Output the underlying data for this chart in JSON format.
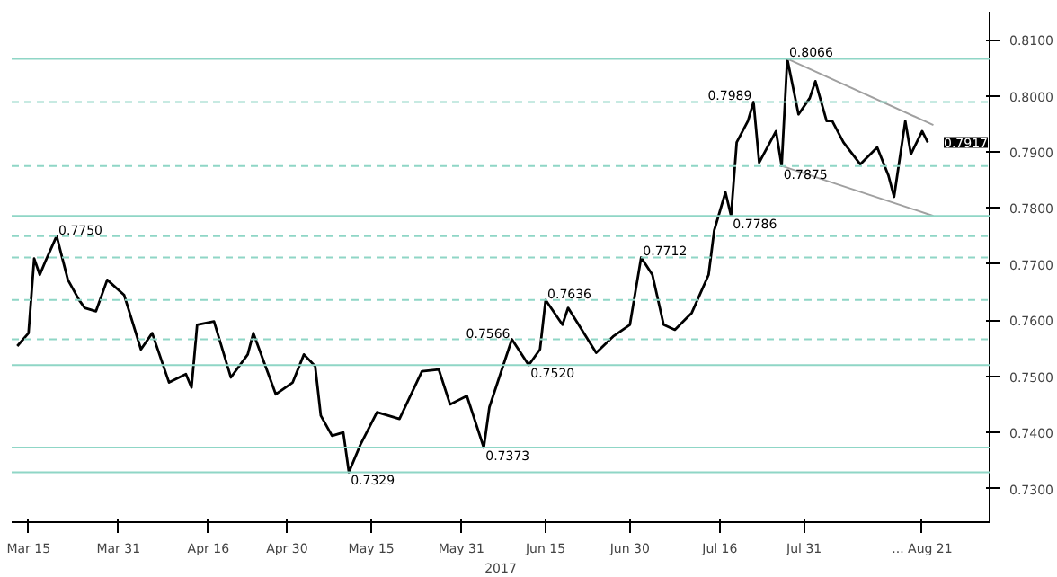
{
  "chart_data": {
    "type": "line",
    "xlabel": "2017",
    "series": [
      {
        "color": "#000000",
        "x": [
          "2017-03-13",
          "2017-03-15",
          "2017-03-16",
          "2017-03-17",
          "2017-03-18",
          "2017-03-20",
          "2017-03-22",
          "2017-03-24",
          "2017-03-25",
          "2017-03-27",
          "2017-03-29",
          "2017-04-01",
          "2017-04-04",
          "2017-04-06",
          "2017-04-09",
          "2017-04-12",
          "2017-04-13",
          "2017-04-14",
          "2017-04-17",
          "2017-04-20",
          "2017-04-23",
          "2017-04-24",
          "2017-04-28",
          "2017-05-01",
          "2017-05-03",
          "2017-05-05",
          "2017-05-06",
          "2017-05-08",
          "2017-05-10",
          "2017-05-11",
          "2017-05-13",
          "2017-05-16",
          "2017-05-20",
          "2017-05-24",
          "2017-05-27",
          "2017-05-29",
          "2017-06-01",
          "2017-06-04",
          "2017-06-05",
          "2017-06-09",
          "2017-06-12",
          "2017-06-14",
          "2017-06-15",
          "2017-06-18",
          "2017-06-19",
          "2017-06-24",
          "2017-06-27",
          "2017-06-30",
          "2017-07-02",
          "2017-07-04",
          "2017-07-06",
          "2017-07-08",
          "2017-07-11",
          "2017-07-14",
          "2017-07-15",
          "2017-07-17",
          "2017-07-18",
          "2017-07-19",
          "2017-07-21",
          "2017-07-22",
          "2017-07-23",
          "2017-07-26",
          "2017-07-27",
          "2017-07-28",
          "2017-07-30",
          "2017-08-01",
          "2017-08-02",
          "2017-08-04",
          "2017-08-05",
          "2017-08-07",
          "2017-08-10",
          "2017-08-13",
          "2017-08-15",
          "2017-08-16",
          "2017-08-18",
          "2017-08-19",
          "2017-08-21",
          "2017-08-22"
        ],
        "values": [
          0.7554,
          0.7577,
          0.771,
          0.7681,
          0.7705,
          0.775,
          0.7672,
          0.7636,
          0.7622,
          0.7616,
          0.7672,
          0.7645,
          0.7548,
          0.7577,
          0.7489,
          0.7504,
          0.748,
          0.7592,
          0.7598,
          0.7498,
          0.7539,
          0.7577,
          0.7468,
          0.7489,
          0.7539,
          0.7518,
          0.743,
          0.7394,
          0.74,
          0.7329,
          0.7377,
          0.7436,
          0.7424,
          0.7509,
          0.7512,
          0.745,
          0.7465,
          0.7373,
          0.7445,
          0.7566,
          0.752,
          0.7548,
          0.7636,
          0.7592,
          0.7622,
          0.7542,
          0.7571,
          0.7592,
          0.7712,
          0.7681,
          0.7592,
          0.7583,
          0.7613,
          0.7681,
          0.776,
          0.7828,
          0.7786,
          0.7917,
          0.7955,
          0.7989,
          0.7881,
          0.7937,
          0.7875,
          0.8066,
          0.7967,
          0.7996,
          0.8026,
          0.7955,
          0.7955,
          0.7917,
          0.7878,
          0.7908,
          0.7858,
          0.782,
          0.7955,
          0.7896,
          0.7937,
          0.7917
        ]
      },
      {
        "color": "#a0a0a0",
        "x": [
          "2017-07-28",
          "2017-08-23"
        ],
        "values": [
          0.8066,
          0.7948
        ]
      },
      {
        "color": "#a0a0a0",
        "x": [
          "2017-07-27",
          "2017-08-23"
        ],
        "values": [
          0.7875,
          0.7786
        ]
      }
    ],
    "xlim": [
      "2017-03-12",
      "2017-09-02"
    ],
    "ylim": [
      0.724,
      0.815
    ],
    "xticks": [
      {
        "value": "2017-03-15",
        "label": "Mar 15"
      },
      {
        "value": "2017-03-31",
        "label": "Mar 31"
      },
      {
        "value": "2017-04-16",
        "label": "Apr 16"
      },
      {
        "value": "2017-04-30",
        "label": "Apr 30"
      },
      {
        "value": "2017-05-15",
        "label": "May 15"
      },
      {
        "value": "2017-05-31",
        "label": "May 31"
      },
      {
        "value": "2017-06-15",
        "label": "Jun 15"
      },
      {
        "value": "2017-06-30",
        "label": "Jun 30"
      },
      {
        "value": "2017-07-16",
        "label": "Jul 16"
      },
      {
        "value": "2017-07-31",
        "label": "Jul 31"
      },
      {
        "value": "2017-08-21",
        "label": "... Aug 21"
      }
    ],
    "yticks": [
      {
        "value": 0.73,
        "label": "0.7300"
      },
      {
        "value": 0.74,
        "label": "0.7400"
      },
      {
        "value": 0.75,
        "label": "0.7500"
      },
      {
        "value": 0.76,
        "label": "0.7600"
      },
      {
        "value": 0.77,
        "label": "0.7700"
      },
      {
        "value": 0.78,
        "label": "0.7800"
      },
      {
        "value": 0.79,
        "label": "0.7900"
      },
      {
        "value": 0.8,
        "label": "0.8000"
      },
      {
        "value": 0.81,
        "label": "0.8100"
      }
    ],
    "ref_lines": [
      {
        "axis": "y",
        "value": 0.8066,
        "color": "#8fd6c6",
        "line_style": "solid"
      },
      {
        "axis": "y",
        "value": 0.7989,
        "color": "#8fd6c6",
        "line_style": "dashed"
      },
      {
        "axis": "y",
        "value": 0.7875,
        "color": "#8fd6c6",
        "line_style": "dashed"
      },
      {
        "axis": "y",
        "value": 0.7786,
        "color": "#8fd6c6",
        "line_style": "solid"
      },
      {
        "axis": "y",
        "value": 0.775,
        "color": "#8fd6c6",
        "line_style": "dashed"
      },
      {
        "axis": "y",
        "value": 0.7712,
        "color": "#8fd6c6",
        "line_style": "dashed"
      },
      {
        "axis": "y",
        "value": 0.7636,
        "color": "#8fd6c6",
        "line_style": "dashed"
      },
      {
        "axis": "y",
        "value": 0.7566,
        "color": "#8fd6c6",
        "line_style": "dashed"
      },
      {
        "axis": "y",
        "value": 0.752,
        "color": "#8fd6c6",
        "line_style": "solid"
      },
      {
        "axis": "y",
        "value": 0.7373,
        "color": "#8fd6c6",
        "line_style": "solid"
      },
      {
        "axis": "y",
        "value": 0.7329,
        "color": "#8fd6c6",
        "line_style": "solid"
      }
    ],
    "annotations": [
      {
        "text": "0.7750",
        "x": "2017-03-20",
        "y": 0.775
      },
      {
        "text": "0.7329",
        "x": "2017-05-11",
        "y": 0.7329
      },
      {
        "text": "0.7373",
        "x": "2017-06-04",
        "y": 0.7373
      },
      {
        "text": "0.7566",
        "x": "2017-06-09",
        "y": 0.7566
      },
      {
        "text": "0.7520",
        "x": "2017-06-12",
        "y": 0.752
      },
      {
        "text": "0.7636",
        "x": "2017-06-15",
        "y": 0.7636
      },
      {
        "text": "0.7712",
        "x": "2017-07-02",
        "y": 0.7712
      },
      {
        "text": "0.7786",
        "x": "2017-07-18",
        "y": 0.7786
      },
      {
        "text": "0.7989",
        "x": "2017-07-22",
        "y": 0.7989
      },
      {
        "text": "0.7875",
        "x": "2017-07-27",
        "y": 0.7875
      },
      {
        "text": "0.8066",
        "x": "2017-07-28",
        "y": 0.8066
      },
      {
        "text": "0.7917",
        "x": "2017-08-22",
        "y": 0.7917
      }
    ],
    "grid": false
  }
}
